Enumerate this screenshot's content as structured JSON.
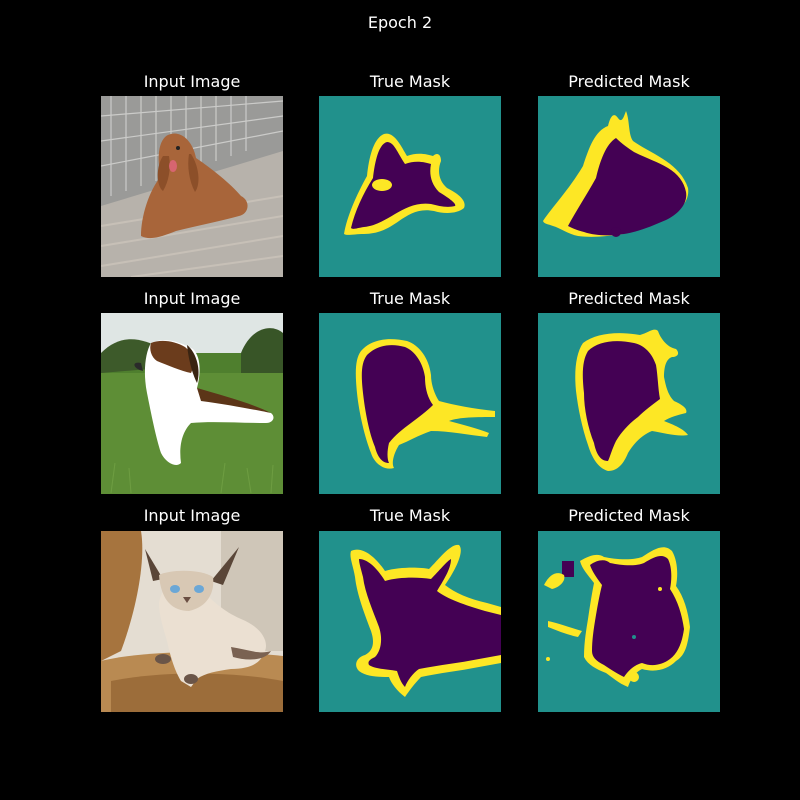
{
  "figure": {
    "title": "Epoch 2",
    "colors": {
      "background": "#000000",
      "mask_background": "#21918c",
      "mask_foreground": "#440154",
      "mask_boundary": "#fde725",
      "text": "#ffffff"
    }
  },
  "rows": [
    {
      "input": {
        "title": "Input Image",
        "subject": "cocker-spaniel-dog-lying-on-wooden-deck"
      },
      "true_mask": {
        "title": "True Mask"
      },
      "predicted_mask": {
        "title": "Predicted Mask"
      }
    },
    {
      "input": {
        "title": "Input Image",
        "subject": "beagle-dog-lying-on-grass"
      },
      "true_mask": {
        "title": "True Mask"
      },
      "predicted_mask": {
        "title": "Predicted Mask"
      }
    },
    {
      "input": {
        "title": "Input Image",
        "subject": "siamese-cat-sitting-on-wooden-block"
      },
      "true_mask": {
        "title": "True Mask"
      },
      "predicted_mask": {
        "title": "Predicted Mask"
      }
    }
  ]
}
